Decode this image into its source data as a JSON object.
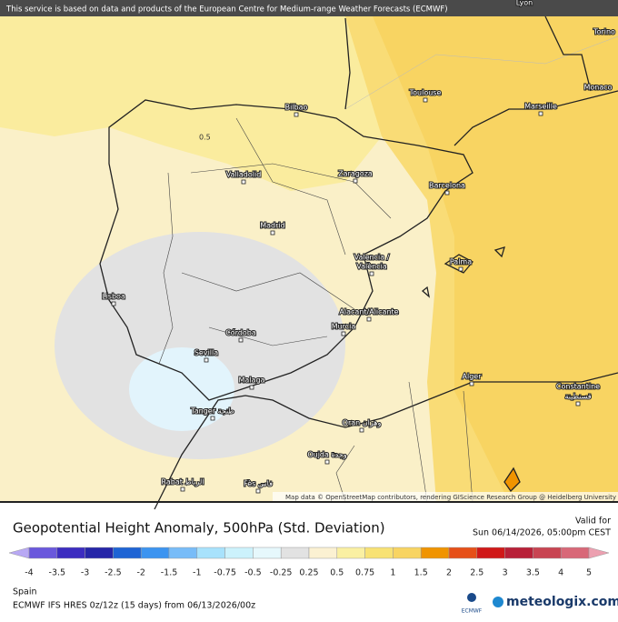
{
  "banner": "This service is based on data and products of the European Centre for Medium-range Weather Forecasts (ECMWF)",
  "map": {
    "contour_label": "0.5",
    "labels": [
      "Lyon",
      "Torino",
      "Toulouse",
      "Monaco",
      "Bilbao",
      "Marseille",
      "Valladolid",
      "Zaragoza",
      "Barcelona",
      "Madrid",
      "Valencia /",
      "València",
      "Palma",
      "Lisboa",
      "Alacant/Alicante",
      "Murcia",
      "Córdoba",
      "Sevilla",
      "Malaga",
      "Alger",
      "Constantine",
      "قسنطينة",
      "Tanger طنجة",
      "Oran وهران",
      "Oujda وجدة",
      "Rabat الرباط",
      "Fès فاس"
    ],
    "attribution": "Map data © OpenStreetMap contributors, rendering GIScience Research Group @ Heidelberg University"
  },
  "legend": {
    "title": "Geopotential Height Anomaly, 500hPa (Std. Deviation)",
    "valid_label": "Valid for",
    "valid_time": "Sun 06/14/2026, 05:00pm CEST",
    "ticks": [
      "-4",
      "-3.5",
      "-3",
      "-2.5",
      "-2",
      "-1.5",
      "-1",
      "-0.75",
      "-0.5",
      "-0.25",
      "0.25",
      "0.5",
      "0.75",
      "1",
      "1.5",
      "2",
      "2.5",
      "3",
      "3.5",
      "4",
      "5"
    ],
    "colors": [
      "#b8a8f4",
      "#6a58dc",
      "#3c2cc0",
      "#2626a8",
      "#1e64d4",
      "#3c94f0",
      "#78bcf8",
      "#a8e2fc",
      "#ccf2fc",
      "#e6f8fc",
      "#e2e2e2",
      "#fbf1d2",
      "#faf0a2",
      "#f8e274",
      "#f8d462",
      "#f09400",
      "#e65018",
      "#d01818",
      "#b82038",
      "#c84452",
      "#d86878",
      "#eca0b0"
    ]
  },
  "footer": {
    "region": "Spain",
    "model_run": "ECMWF IFS HRES 0z/12z (15 days) from  06/13/2026/00z",
    "ecmwf": "ECMWF",
    "brand": "meteologix.com"
  }
}
